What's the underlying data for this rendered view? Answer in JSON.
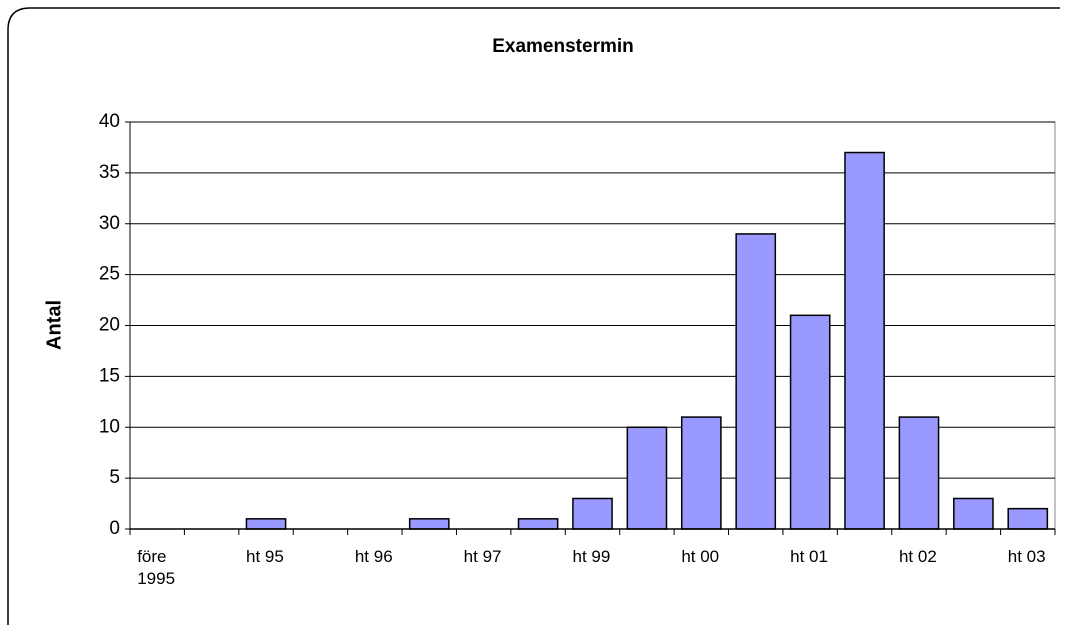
{
  "chart_data": {
    "type": "bar",
    "title": "Examenstermin",
    "y_label": "Antal",
    "categories": [
      "före 1995",
      null,
      "ht 95",
      null,
      "ht 96",
      null,
      "ht 97",
      null,
      "ht 99",
      null,
      "ht 00",
      null,
      "ht 01",
      null,
      "ht 02",
      null,
      "ht 03"
    ],
    "values": [
      0,
      0,
      1,
      0,
      0,
      1,
      0,
      1,
      3,
      10,
      11,
      29,
      21,
      37,
      11,
      3,
      2
    ],
    "color": "#9999ff",
    "ylim": [
      0,
      40
    ],
    "yticks": [
      0,
      5,
      10,
      15,
      20,
      25,
      30,
      35,
      40
    ],
    "grid": true
  }
}
